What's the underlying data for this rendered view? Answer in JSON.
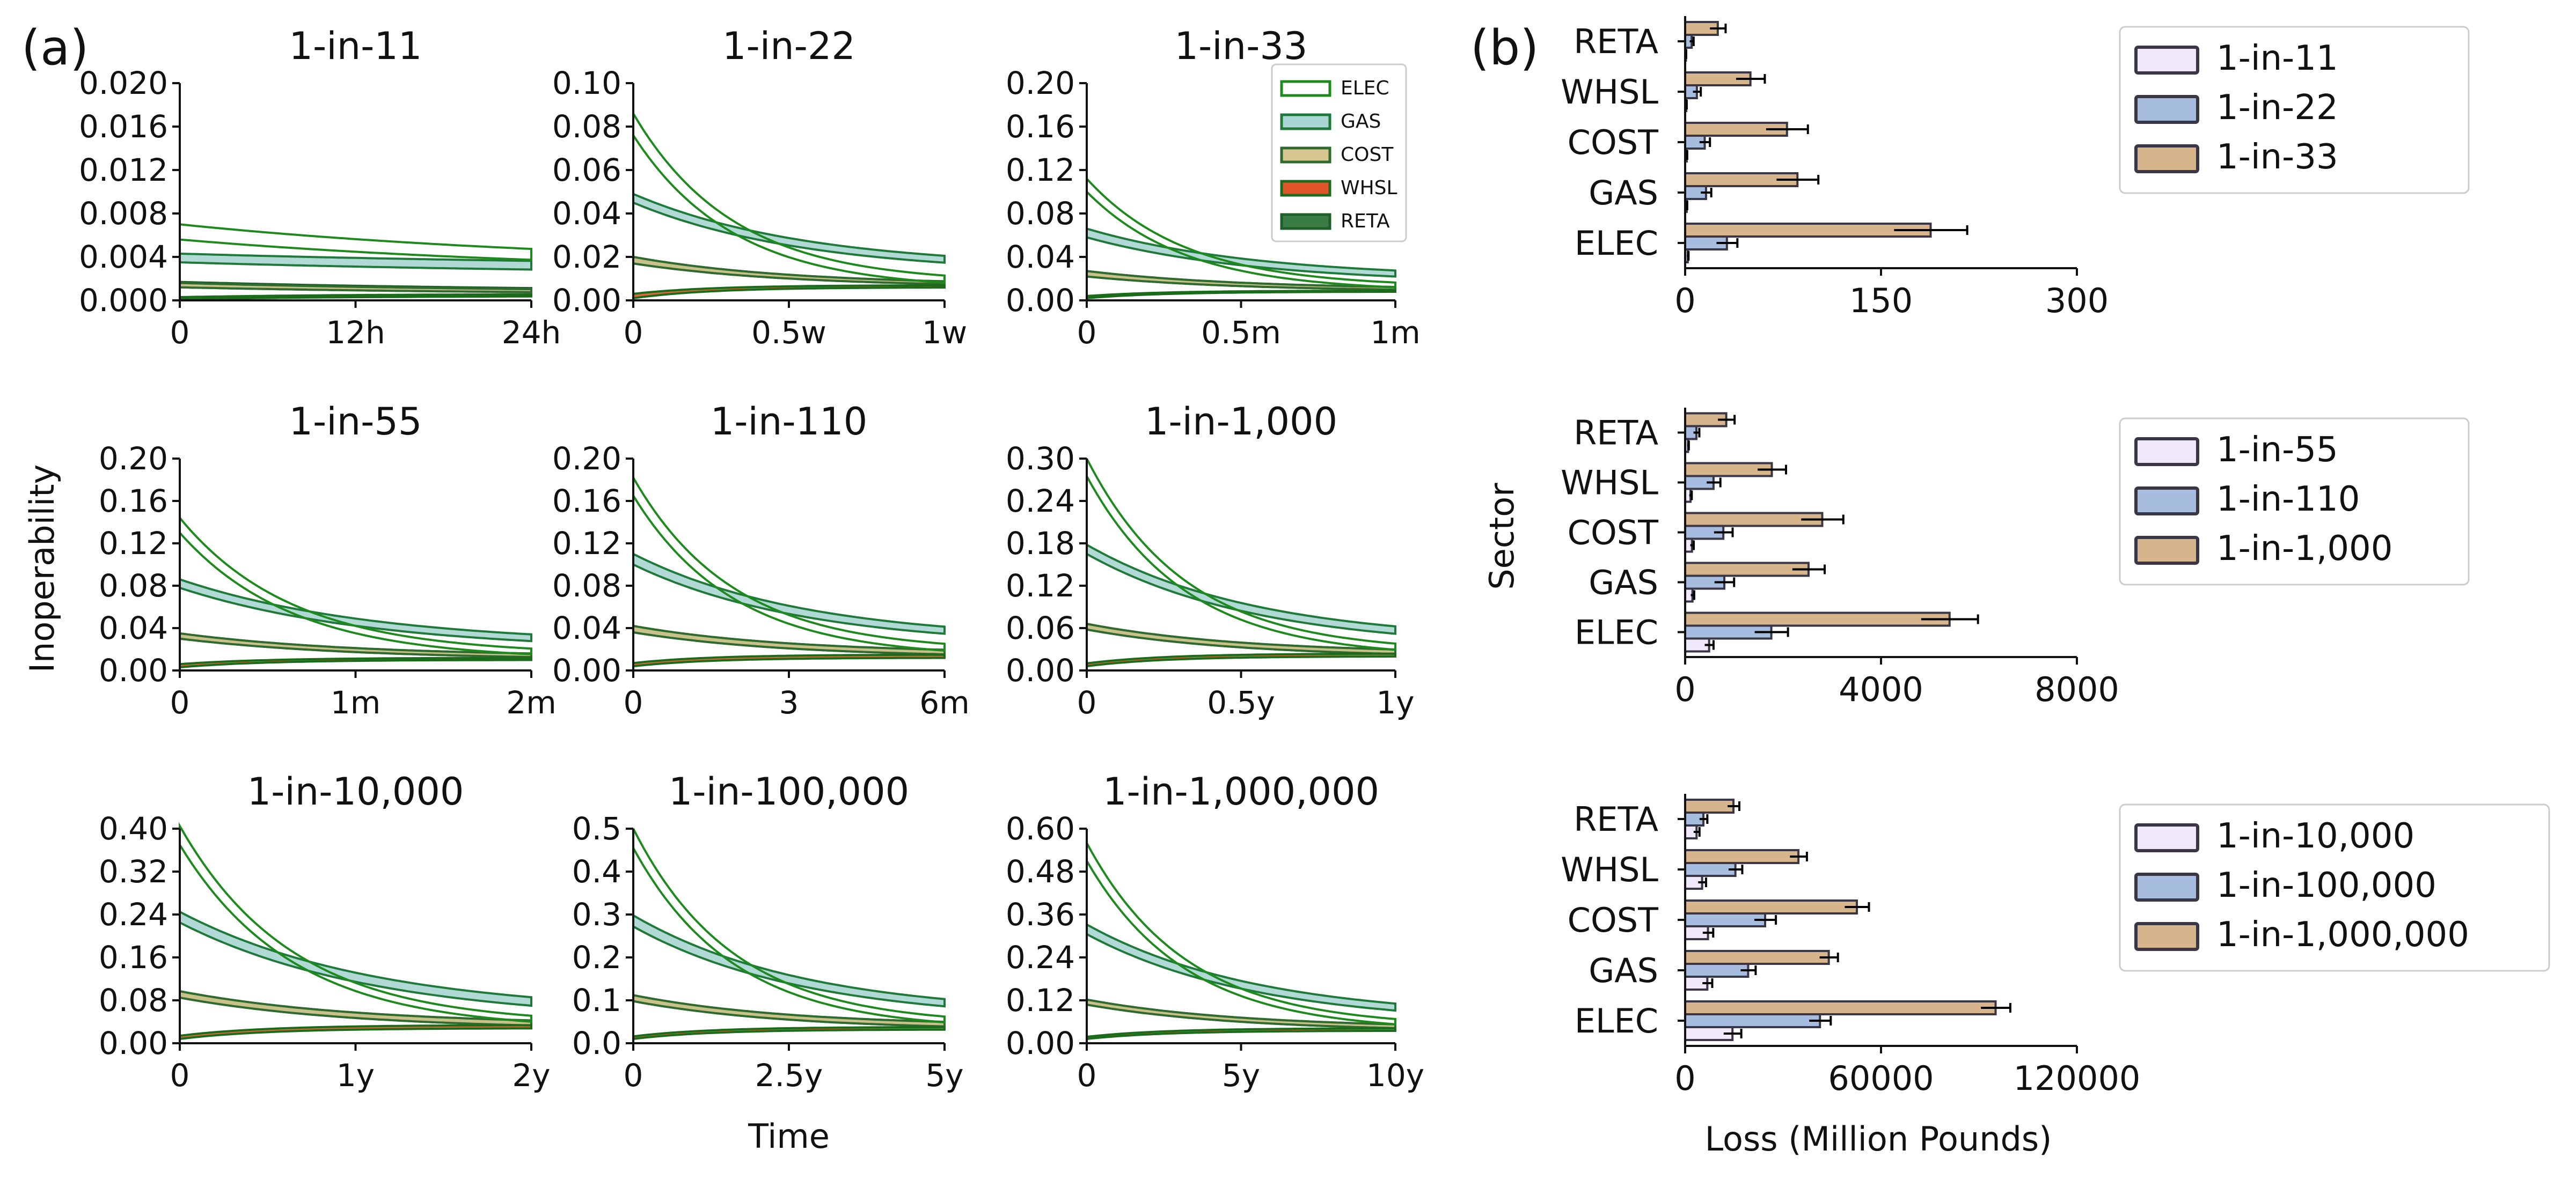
{
  "panel_labels": {
    "a": "(a)",
    "b": "(b)"
  },
  "colors": {
    "ELEC_edge": "#1e8a1e",
    "ELEC_fill": "#ffffff",
    "GAS_edge": "#1f7a3a",
    "GAS_fill": "#a9d6d2",
    "COST_edge": "#2f6b2f",
    "COST_fill": "#d6c690",
    "WHSL_edge": "#1a6b1a",
    "WHSL_fill": "#e0562a",
    "RETA_edge": "#1d5e2a",
    "RETA_fill": "#3a7d44",
    "bar_edge": "#3b3646",
    "bar_lo": "#efe9fb",
    "bar_mid": "#a6bde0",
    "bar_hi": "#d6b48c"
  },
  "legend_a": {
    "entries": [
      "ELEC",
      "GAS",
      "COST",
      "WHSL",
      "RETA"
    ]
  },
  "ylabel_a": "Inoperability",
  "xlabel_a": "Time",
  "ylabel_b": "Sector",
  "xlabel_b": "Loss (Million Pounds)",
  "chart_data": [
    {
      "type": "line",
      "title": "1-in-11",
      "ylim": [
        0,
        0.02
      ],
      "yticks": [
        "0.000",
        "0.004",
        "0.008",
        "0.012",
        "0.016",
        "0.020"
      ],
      "xticks": [
        "0",
        "12h",
        "24h"
      ],
      "series": [
        {
          "name": "ELEC",
          "band": [
            [
              0.0056,
              0.0023
            ],
            [
              0.007,
              0.003
            ]
          ],
          "tau": 1.2
        },
        {
          "name": "GAS",
          "band": [
            [
              0.0035,
              0.0022
            ],
            [
              0.0043,
              0.003
            ]
          ],
          "tau": 1.4
        },
        {
          "name": "COST",
          "band": [
            [
              0.0012,
              0.0005
            ],
            [
              0.0016,
              0.0007
            ]
          ],
          "tau": 1.0
        },
        {
          "name": "WHSL",
          "band": [
            [
              0.0001,
              0.0004
            ],
            [
              0.0003,
              0.0006
            ]
          ],
          "tau": 0.5,
          "rise": true
        },
        {
          "name": "RETA",
          "band": [
            [
              0.0012,
              0.0005
            ],
            [
              0.0017,
              0.0008
            ]
          ],
          "tau": 1.0
        }
      ]
    },
    {
      "type": "line",
      "title": "1-in-22",
      "ylim": [
        0,
        0.1
      ],
      "yticks": [
        "0.00",
        "0.02",
        "0.04",
        "0.06",
        "0.08",
        "0.10"
      ],
      "xticks": [
        "0",
        "0.5w",
        "1w"
      ],
      "series": [
        {
          "name": "ELEC",
          "band": [
            [
              0.076,
              0.005
            ],
            [
              0.086,
              0.008
            ]
          ],
          "tau": 0.32
        },
        {
          "name": "GAS",
          "band": [
            [
              0.045,
              0.012
            ],
            [
              0.049,
              0.015
            ]
          ],
          "tau": 0.55
        },
        {
          "name": "COST",
          "band": [
            [
              0.017,
              0.006
            ],
            [
              0.02,
              0.007
            ]
          ],
          "tau": 0.5
        },
        {
          "name": "WHSL",
          "band": [
            [
              0.001,
              0.006
            ],
            [
              0.003,
              0.007
            ]
          ],
          "tau": 0.25,
          "rise": true
        },
        {
          "name": "RETA",
          "band": [
            [
              0.017,
              0.006
            ],
            [
              0.02,
              0.007
            ]
          ],
          "tau": 0.5
        }
      ]
    },
    {
      "type": "line",
      "title": "1-in-33",
      "ylim": [
        0,
        0.2
      ],
      "yticks": [
        "0.00",
        "0.04",
        "0.08",
        "0.12",
        "0.16",
        "0.20"
      ],
      "xticks": [
        "0",
        "0.5m",
        "1m"
      ],
      "series": [
        {
          "name": "ELEC",
          "band": [
            [
              0.1,
              0.008
            ],
            [
              0.112,
              0.012
            ]
          ],
          "tau": 0.32
        },
        {
          "name": "GAS",
          "band": [
            [
              0.058,
              0.015
            ],
            [
              0.066,
              0.02
            ]
          ],
          "tau": 0.55
        },
        {
          "name": "COST",
          "band": [
            [
              0.022,
              0.008
            ],
            [
              0.027,
              0.01
            ]
          ],
          "tau": 0.5
        },
        {
          "name": "WHSL",
          "band": [
            [
              0.002,
              0.008
            ],
            [
              0.004,
              0.009
            ]
          ],
          "tau": 0.25,
          "rise": true
        },
        {
          "name": "RETA",
          "band": [
            [
              0.022,
              0.008
            ],
            [
              0.027,
              0.01
            ]
          ],
          "tau": 0.5
        }
      ]
    },
    {
      "type": "line",
      "title": "1-in-55",
      "ylim": [
        0,
        0.2
      ],
      "yticks": [
        "0.00",
        "0.04",
        "0.08",
        "0.12",
        "0.16",
        "0.20"
      ],
      "xticks": [
        "0",
        "1m",
        "2m"
      ],
      "series": [
        {
          "name": "ELEC",
          "band": [
            [
              0.13,
              0.01
            ],
            [
              0.144,
              0.015
            ]
          ],
          "tau": 0.32
        },
        {
          "name": "GAS",
          "band": [
            [
              0.078,
              0.018
            ],
            [
              0.086,
              0.024
            ]
          ],
          "tau": 0.55
        },
        {
          "name": "COST",
          "band": [
            [
              0.03,
              0.01
            ],
            [
              0.035,
              0.013
            ]
          ],
          "tau": 0.5
        },
        {
          "name": "WHSL",
          "band": [
            [
              0.003,
              0.01
            ],
            [
              0.006,
              0.012
            ]
          ],
          "tau": 0.25,
          "rise": true
        },
        {
          "name": "RETA",
          "band": [
            [
              0.03,
              0.01
            ],
            [
              0.035,
              0.013
            ]
          ],
          "tau": 0.5
        }
      ]
    },
    {
      "type": "line",
      "title": "1-in-110",
      "ylim": [
        0,
        0.2
      ],
      "yticks": [
        "0.00",
        "0.04",
        "0.08",
        "0.12",
        "0.16",
        "0.20"
      ],
      "xticks": [
        "0",
        "3",
        "6m"
      ],
      "series": [
        {
          "name": "ELEC",
          "band": [
            [
              0.165,
              0.012
            ],
            [
              0.182,
              0.018
            ]
          ],
          "tau": 0.32
        },
        {
          "name": "GAS",
          "band": [
            [
              0.1,
              0.022
            ],
            [
              0.11,
              0.028
            ]
          ],
          "tau": 0.55
        },
        {
          "name": "COST",
          "band": [
            [
              0.036,
              0.012
            ],
            [
              0.042,
              0.016
            ]
          ],
          "tau": 0.5
        },
        {
          "name": "WHSL",
          "band": [
            [
              0.004,
              0.012
            ],
            [
              0.007,
              0.015
            ]
          ],
          "tau": 0.25,
          "rise": true
        },
        {
          "name": "RETA",
          "band": [
            [
              0.036,
              0.012
            ],
            [
              0.042,
              0.016
            ]
          ],
          "tau": 0.5
        }
      ]
    },
    {
      "type": "line",
      "title": "1-in-1,000",
      "ylim": [
        0,
        0.3
      ],
      "yticks": [
        "0.00",
        "0.06",
        "0.12",
        "0.18",
        "0.24",
        "0.30"
      ],
      "xticks": [
        "0",
        "0.5y",
        "1y"
      ],
      "series": [
        {
          "name": "ELEC",
          "band": [
            [
              0.275,
              0.018
            ],
            [
              0.3,
              0.026
            ]
          ],
          "tau": 0.32
        },
        {
          "name": "GAS",
          "band": [
            [
              0.165,
              0.03
            ],
            [
              0.178,
              0.04
            ]
          ],
          "tau": 0.55
        },
        {
          "name": "COST",
          "band": [
            [
              0.058,
              0.018
            ],
            [
              0.066,
              0.024
            ]
          ],
          "tau": 0.5
        },
        {
          "name": "WHSL",
          "band": [
            [
              0.006,
              0.02
            ],
            [
              0.01,
              0.024
            ]
          ],
          "tau": 0.25,
          "rise": true
        },
        {
          "name": "RETA",
          "band": [
            [
              0.058,
              0.018
            ],
            [
              0.066,
              0.024
            ]
          ],
          "tau": 0.5
        }
      ]
    },
    {
      "type": "line",
      "title": "1-in-10,000",
      "ylim": [
        0,
        0.4
      ],
      "yticks": [
        "0.00",
        "0.08",
        "0.16",
        "0.24",
        "0.32",
        "0.40"
      ],
      "xticks": [
        "0",
        "1y",
        "2y"
      ],
      "series": [
        {
          "name": "ELEC",
          "band": [
            [
              0.37,
              0.025
            ],
            [
              0.405,
              0.035
            ]
          ],
          "tau": 0.32
        },
        {
          "name": "GAS",
          "band": [
            [
              0.225,
              0.04
            ],
            [
              0.245,
              0.055
            ]
          ],
          "tau": 0.55
        },
        {
          "name": "COST",
          "band": [
            [
              0.085,
              0.025
            ],
            [
              0.097,
              0.034
            ]
          ],
          "tau": 0.5
        },
        {
          "name": "WHSL",
          "band": [
            [
              0.008,
              0.028
            ],
            [
              0.014,
              0.034
            ]
          ],
          "tau": 0.25,
          "rise": true
        },
        {
          "name": "RETA",
          "band": [
            [
              0.085,
              0.025
            ],
            [
              0.097,
              0.034
            ]
          ],
          "tau": 0.5
        }
      ]
    },
    {
      "type": "line",
      "title": "1-in-100,000",
      "ylim": [
        0,
        0.5
      ],
      "yticks": [
        "0.0",
        "0.1",
        "0.2",
        "0.3",
        "0.4",
        "0.5"
      ],
      "xticks": [
        "0",
        "2.5y",
        "5y"
      ],
      "series": [
        {
          "name": "ELEC",
          "band": [
            [
              0.455,
              0.03
            ],
            [
              0.5,
              0.042
            ]
          ],
          "tau": 0.32
        },
        {
          "name": "GAS",
          "band": [
            [
              0.272,
              0.05
            ],
            [
              0.298,
              0.065
            ]
          ],
          "tau": 0.55
        },
        {
          "name": "COST",
          "band": [
            [
              0.098,
              0.03
            ],
            [
              0.112,
              0.04
            ]
          ],
          "tau": 0.5
        },
        {
          "name": "WHSL",
          "band": [
            [
              0.01,
              0.032
            ],
            [
              0.016,
              0.038
            ]
          ],
          "tau": 0.25,
          "rise": true
        },
        {
          "name": "RETA",
          "band": [
            [
              0.098,
              0.03
            ],
            [
              0.112,
              0.04
            ]
          ],
          "tau": 0.5
        }
      ]
    },
    {
      "type": "line",
      "title": "1-in-1,000,000",
      "ylim": [
        0,
        0.6
      ],
      "yticks": [
        "0.00",
        "0.12",
        "0.24",
        "0.36",
        "0.48",
        "0.60"
      ],
      "xticks": [
        "0",
        "5y",
        "10y"
      ],
      "series": [
        {
          "name": "ELEC",
          "band": [
            [
              0.51,
              0.032
            ],
            [
              0.56,
              0.045
            ]
          ],
          "tau": 0.32
        },
        {
          "name": "GAS",
          "band": [
            [
              0.305,
              0.05
            ],
            [
              0.332,
              0.068
            ]
          ],
          "tau": 0.55
        },
        {
          "name": "COST",
          "band": [
            [
              0.108,
              0.032
            ],
            [
              0.122,
              0.042
            ]
          ],
          "tau": 0.5
        },
        {
          "name": "WHSL",
          "band": [
            [
              0.012,
              0.035
            ],
            [
              0.018,
              0.042
            ]
          ],
          "tau": 0.25,
          "rise": true
        },
        {
          "name": "RETA",
          "band": [
            [
              0.108,
              0.032
            ],
            [
              0.122,
              0.042
            ]
          ],
          "tau": 0.5
        }
      ]
    },
    {
      "type": "bar",
      "orientation": "horizontal",
      "categories": [
        "RETA",
        "WHSL",
        "COST",
        "GAS",
        "ELEC"
      ],
      "xlim": [
        0,
        300
      ],
      "xticks": [
        "0",
        "150",
        "300"
      ],
      "series": [
        {
          "name": "1-in-11",
          "values": [
            0.6,
            0.9,
            1.2,
            1.2,
            2.0
          ],
          "err": [
            0.2,
            0.3,
            0.4,
            0.4,
            0.6
          ]
        },
        {
          "name": "1-in-22",
          "values": [
            5,
            9,
            15,
            16,
            32
          ],
          "err": [
            1.5,
            3,
            4,
            4,
            8
          ]
        },
        {
          "name": "1-in-33",
          "values": [
            25,
            50,
            78,
            86,
            188
          ],
          "err": [
            6,
            11,
            16,
            16,
            28
          ]
        }
      ]
    },
    {
      "type": "bar",
      "orientation": "horizontal",
      "categories": [
        "RETA",
        "WHSL",
        "COST",
        "GAS",
        "ELEC"
      ],
      "xlim": [
        0,
        8000
      ],
      "xticks": [
        "0",
        "4000",
        "8000"
      ],
      "series": [
        {
          "name": "1-in-55",
          "values": [
            60,
            110,
            140,
            150,
            490
          ],
          "err": [
            15,
            25,
            35,
            35,
            90
          ]
        },
        {
          "name": "1-in-110",
          "values": [
            230,
            580,
            780,
            800,
            1760
          ],
          "err": [
            60,
            140,
            190,
            200,
            340
          ]
        },
        {
          "name": "1-in-1,000",
          "values": [
            840,
            1770,
            2800,
            2520,
            5400
          ],
          "err": [
            170,
            290,
            430,
            330,
            580
          ]
        }
      ]
    },
    {
      "type": "bar",
      "orientation": "horizontal",
      "categories": [
        "RETA",
        "WHSL",
        "COST",
        "GAS",
        "ELEC"
      ],
      "xlim": [
        0,
        120000
      ],
      "xticks": [
        "0",
        "60000",
        "120000"
      ],
      "series": [
        {
          "name": "1-in-10,000",
          "values": [
            3500,
            5200,
            7000,
            6800,
            14500
          ],
          "err": [
            900,
            1200,
            1600,
            1500,
            2700
          ]
        },
        {
          "name": "1-in-100,000",
          "values": [
            5600,
            15400,
            24500,
            19300,
            41300
          ],
          "err": [
            1200,
            2100,
            3300,
            2300,
            3300
          ]
        },
        {
          "name": "1-in-1,000,000",
          "values": [
            14800,
            34700,
            52600,
            44000,
            95100
          ],
          "err": [
            1800,
            2600,
            3700,
            2800,
            4500
          ]
        }
      ]
    }
  ]
}
